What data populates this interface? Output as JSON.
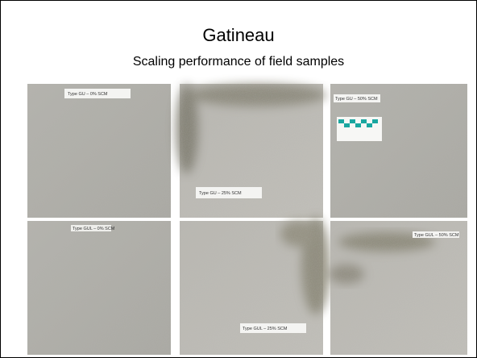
{
  "header": {
    "title": "Gatineau",
    "subtitle": "Scaling performance of field samples"
  },
  "photos": [
    {
      "label": "Type GU – 0% SCM"
    },
    {
      "label": "Type GU – 25% SCM"
    },
    {
      "label": "Type GU – 50% SCM"
    },
    {
      "label": "Type GUL – 0% SCM"
    },
    {
      "label": "Type GUL – 25% SCM"
    },
    {
      "label": "Type GUL – 50% SCM"
    }
  ]
}
